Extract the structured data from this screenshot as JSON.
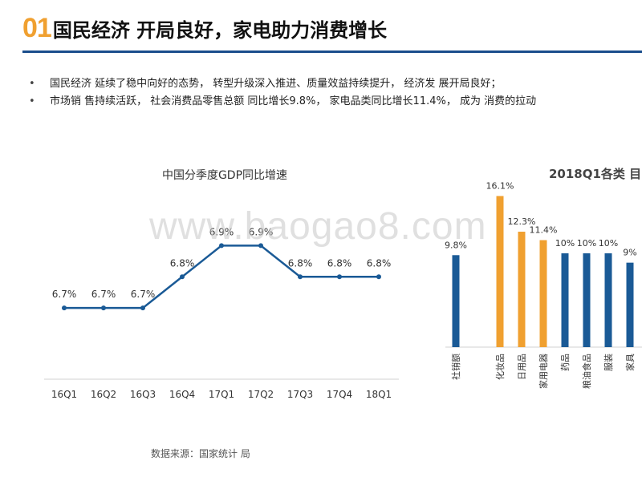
{
  "header": {
    "number": "01",
    "title": "国民经济 开局良好，家电助力消费增长"
  },
  "bullets": [
    "国民经济 延续了稳中向好的态势， 转型升级深入推进、质量效益持续提升， 经济发 展开局良好；",
    "市场销 售持续活跃， 社会消费品零售总额 同比增长9.8%， 家电品类同比增长11.4%， 成为 消费的拉动"
  ],
  "watermark": "www.baogao8.com",
  "source": "数据来源：国家统计 局",
  "colors": {
    "accent": "#f0a030",
    "primary": "#1a5a96",
    "rule": "#1a4d8c"
  },
  "chart_data": [
    {
      "type": "line",
      "title": "中国分季度GDP同比增速",
      "categories": [
        "16Q1",
        "16Q2",
        "16Q3",
        "16Q4",
        "17Q1",
        "17Q2",
        "17Q3",
        "17Q4",
        "18Q1"
      ],
      "values": [
        6.7,
        6.7,
        6.7,
        6.8,
        6.9,
        6.9,
        6.8,
        6.8,
        6.8
      ],
      "labels": [
        "6.7%",
        "6.7%",
        "6.7%",
        "6.8%",
        "6.9%",
        "6.9%",
        "6.8%",
        "6.8%",
        "6.8%"
      ],
      "ylim": [
        6.5,
        7.05
      ],
      "xlabel": "",
      "ylabel": ""
    },
    {
      "type": "bar",
      "title": "2018Q1各类 目",
      "categories": [
        "社销额",
        "化妆品",
        "日用品",
        "家用电器",
        "药品",
        "粮油食品",
        "服装",
        "家具"
      ],
      "values": [
        9.8,
        16.1,
        12.3,
        11.4,
        10,
        10,
        10,
        9
      ],
      "labels": [
        "9.8%",
        "16.1%",
        "12.3%",
        "11.4%",
        "10%",
        "10%",
        "10%",
        "9%"
      ],
      "colors": [
        "#1a5a96",
        "#f0a030",
        "#f0a030",
        "#f0a030",
        "#1a5a96",
        "#1a5a96",
        "#1a5a96",
        "#1a5a96"
      ],
      "ylim": [
        0,
        17
      ]
    }
  ]
}
